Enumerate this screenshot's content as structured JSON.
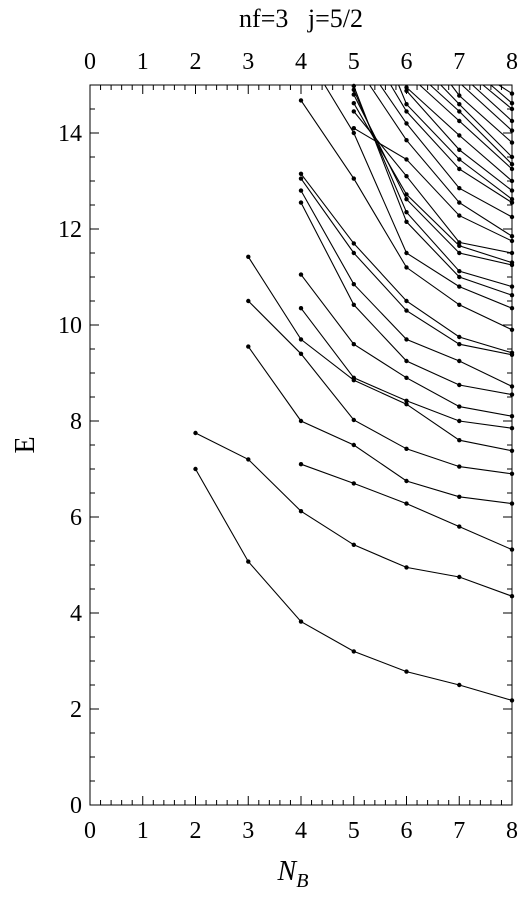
{
  "chart_data": {
    "type": "line",
    "title": "nf=3   j=5/2",
    "xlabel": "N",
    "xlabel_subscript": "B",
    "ylabel": "E",
    "xlim": [
      0,
      8
    ],
    "ylim": [
      0,
      15
    ],
    "x_ticks": [
      "0",
      "1",
      "2",
      "3",
      "4",
      "5",
      "6",
      "7",
      "8"
    ],
    "y_ticks": [
      "0",
      "2",
      "4",
      "6",
      "8",
      "10",
      "12",
      "14"
    ],
    "y_tick_values": [
      0,
      2,
      4,
      6,
      8,
      10,
      12,
      14
    ],
    "series": [
      {
        "x": [
          2,
          3,
          4,
          5,
          6,
          7,
          8
        ],
        "values": [
          7.0,
          5.07,
          3.82,
          3.2,
          2.78,
          2.5,
          2.18
        ]
      },
      {
        "x": [
          2,
          3,
          4,
          5,
          6,
          7,
          8
        ],
        "values": [
          7.75,
          7.2,
          6.12,
          5.42,
          4.95,
          4.75,
          4.35
        ]
      },
      {
        "x": [
          4,
          5,
          6,
          7,
          8
        ],
        "values": [
          7.1,
          6.7,
          6.28,
          5.8,
          5.32
        ]
      },
      {
        "x": [
          3,
          4,
          5,
          6,
          7,
          8
        ],
        "values": [
          9.55,
          8.0,
          7.5,
          6.75,
          6.42,
          6.28
        ]
      },
      {
        "x": [
          3,
          4,
          5,
          6,
          7,
          8
        ],
        "values": [
          10.5,
          9.4,
          8.02,
          7.42,
          7.05,
          6.9
        ]
      },
      {
        "x": [
          3,
          4,
          5,
          6,
          7,
          8
        ],
        "values": [
          11.42,
          9.7,
          8.85,
          8.35,
          7.6,
          7.38
        ]
      },
      {
        "x": [
          4,
          5,
          6,
          7,
          8
        ],
        "values": [
          10.35,
          8.9,
          8.42,
          8.0,
          7.85
        ]
      },
      {
        "x": [
          4,
          5,
          6,
          7,
          8
        ],
        "values": [
          11.05,
          9.6,
          8.9,
          8.3,
          8.1
        ]
      },
      {
        "x": [
          4,
          5,
          6,
          7,
          8
        ],
        "values": [
          12.55,
          10.42,
          9.25,
          8.75,
          8.55
        ]
      },
      {
        "x": [
          4,
          5,
          6,
          7,
          8
        ],
        "values": [
          12.8,
          10.85,
          9.7,
          9.25,
          8.72
        ]
      },
      {
        "x": [
          4,
          5,
          6,
          7,
          8
        ],
        "values": [
          13.05,
          11.5,
          10.3,
          9.6,
          9.38
        ]
      },
      {
        "x": [
          4,
          5,
          6,
          7,
          8
        ],
        "values": [
          13.15,
          11.7,
          10.5,
          9.75,
          9.42
        ]
      },
      {
        "x": [
          4,
          5,
          6,
          7,
          8
        ],
        "values": [
          14.68,
          13.05,
          11.2,
          10.42,
          9.9
        ]
      },
      {
        "x": [
          4.45,
          5,
          6,
          7,
          8
        ],
        "values": [
          15.0,
          14.0,
          11.5,
          10.8,
          10.35
        ]
      },
      {
        "x": [
          5,
          6,
          7,
          8
        ],
        "values": [
          14.98,
          12.15,
          11.0,
          10.62
        ]
      },
      {
        "x": [
          5,
          6,
          7,
          8
        ],
        "values": [
          14.9,
          12.35,
          11.12,
          10.8
        ]
      },
      {
        "x": [
          5,
          6,
          7,
          8
        ],
        "values": [
          14.8,
          12.62,
          11.5,
          11.25
        ]
      },
      {
        "x": [
          5,
          6,
          7,
          8
        ],
        "values": [
          14.62,
          12.72,
          11.65,
          11.3
        ]
      },
      {
        "x": [
          5,
          6,
          7,
          8
        ],
        "values": [
          14.45,
          13.1,
          11.72,
          11.5
        ]
      },
      {
        "x": [
          5,
          6,
          7,
          8
        ],
        "values": [
          14.1,
          13.45,
          12.28,
          11.75
        ]
      },
      {
        "x": [
          5.3,
          6,
          7,
          8
        ],
        "values": [
          15.0,
          13.85,
          12.55,
          11.85
        ]
      },
      {
        "x": [
          5.5,
          6,
          7,
          8
        ],
        "values": [
          15.0,
          14.2,
          12.85,
          12.25
        ]
      },
      {
        "x": [
          5.7,
          6,
          7,
          8
        ],
        "values": [
          15.0,
          14.45,
          13.25,
          12.55
        ]
      },
      {
        "x": [
          5.85,
          6,
          7,
          8
        ],
        "values": [
          15.0,
          14.6,
          13.45,
          12.62
        ]
      },
      {
        "x": [
          6,
          7,
          8
        ],
        "values": [
          14.88,
          13.65,
          12.8
        ]
      },
      {
        "x": [
          6,
          7,
          8
        ],
        "values": [
          14.95,
          13.95,
          13.0
        ]
      },
      {
        "x": [
          6.25,
          7,
          8
        ],
        "values": [
          15.0,
          14.25,
          13.25
        ]
      },
      {
        "x": [
          6.45,
          7,
          8
        ],
        "values": [
          15.0,
          14.45,
          13.35
        ]
      },
      {
        "x": [
          6.65,
          7,
          8
        ],
        "values": [
          15.0,
          14.6,
          13.5
        ]
      },
      {
        "x": [
          6.85,
          7,
          8
        ],
        "values": [
          15.0,
          14.78,
          13.8
        ]
      },
      {
        "x": [
          7.05,
          8
        ],
        "values": [
          15.0,
          14.05
        ]
      },
      {
        "x": [
          7.25,
          8
        ],
        "values": [
          15.0,
          14.25
        ]
      },
      {
        "x": [
          7.45,
          8
        ],
        "values": [
          15.0,
          14.5
        ]
      },
      {
        "x": [
          7.6,
          8
        ],
        "values": [
          15.0,
          14.62
        ]
      },
      {
        "x": [
          7.75,
          8
        ],
        "values": [
          15.0,
          14.82
        ]
      }
    ],
    "grid": false,
    "legend": "none"
  }
}
